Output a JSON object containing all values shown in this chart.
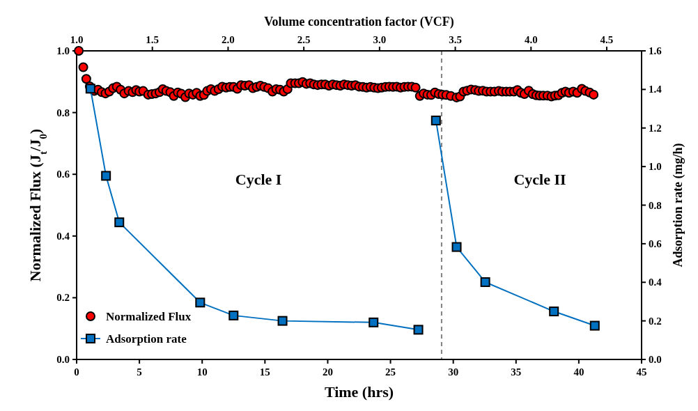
{
  "chart_data": {
    "type": "scatter",
    "xlabel": "Time (hrs)",
    "x2label": "Volume concentration factor (VCF)",
    "ylabel": "Normalized Flux (J$_{t}$/J$_{0}$)",
    "y2label": "Adsorption rate (mg/h)",
    "xlim": [
      0,
      45
    ],
    "xticks": [
      0,
      5,
      10,
      15,
      20,
      25,
      30,
      35,
      40,
      45
    ],
    "x2lim": [
      1.0,
      4.73
    ],
    "x2ticks": [
      {
        "value": 1.0,
        "label": "1.0"
      },
      {
        "value": 1.5,
        "label": "1.5"
      },
      {
        "value": 2.0,
        "label": "2.0"
      },
      {
        "value": 2.5,
        "label": "2.5"
      },
      {
        "value": 3.0,
        "label": "3.0"
      },
      {
        "value": 3.5,
        "label": "3.5"
      },
      {
        "value": 4.0,
        "label": "4.0"
      },
      {
        "value": 4.5,
        "label": "4.5"
      }
    ],
    "ylim": [
      0,
      1
    ],
    "yticks": [
      {
        "value": 0,
        "label": "0.0"
      },
      {
        "value": 0.2,
        "label": "0.2"
      },
      {
        "value": 0.4,
        "label": "0.4"
      },
      {
        "value": 0.6,
        "label": "0.6"
      },
      {
        "value": 0.8,
        "label": "0.8"
      },
      {
        "value": 1.0,
        "label": "1.0"
      }
    ],
    "y2lim": [
      0,
      1.6
    ],
    "y2ticks": [
      {
        "value": 0,
        "label": "0.0"
      },
      {
        "value": 0.2,
        "label": "0.2"
      },
      {
        "value": 0.4,
        "label": "0.4"
      },
      {
        "value": 0.6,
        "label": "0.6"
      },
      {
        "value": 0.8,
        "label": "0.8"
      },
      {
        "value": 1.0,
        "label": "1.0"
      },
      {
        "value": 1.2,
        "label": "1.2"
      },
      {
        "value": 1.4,
        "label": "1.4"
      },
      {
        "value": 1.6,
        "label": "1.6"
      }
    ],
    "legend": "bottom left",
    "grid": false,
    "ref_lines": [
      {
        "axis": "x",
        "value": 29.07,
        "color": "#808080",
        "line_style": "dashed"
      }
    ],
    "annotations": [
      "Cycle I",
      "Cycle II"
    ],
    "series": [
      {
        "name": "Normalized Flux",
        "marker": "circle",
        "color": "#ff0000",
        "x": [
          0.17,
          0.53,
          0.77,
          1.05,
          1.4,
          1.7,
          2.0,
          2.3,
          2.6,
          2.9,
          3.2,
          3.5,
          3.8,
          4.14,
          4.46,
          4.74,
          5.0,
          5.3,
          5.7,
          6.0,
          6.3,
          6.6,
          6.86,
          7.14,
          7.46,
          7.74,
          8.06,
          8.34,
          8.66,
          8.96,
          9.26,
          9.56,
          9.84,
          10.14,
          10.4,
          10.7,
          11.0,
          11.3,
          11.6,
          11.9,
          12.2,
          12.5,
          12.8,
          13.1,
          13.4,
          13.74,
          14.04,
          14.34,
          14.64,
          14.94,
          15.26,
          15.6,
          15.9,
          16.2,
          16.5,
          16.8,
          17.06,
          17.4,
          17.7,
          18.0,
          18.3,
          18.6,
          18.9,
          19.2,
          19.5,
          19.8,
          20.1,
          20.4,
          20.7,
          21.0,
          21.3,
          21.6,
          21.9,
          22.2,
          22.5,
          22.8,
          23.1,
          23.4,
          23.7,
          24.0,
          24.3,
          24.6,
          24.9,
          25.2,
          25.5,
          25.8,
          26.1,
          26.4,
          26.7,
          27.0,
          27.34,
          27.64,
          27.94,
          28.24,
          28.54,
          28.84,
          29.14,
          29.44,
          29.8,
          30.26,
          30.54,
          30.82,
          31.1,
          31.42,
          31.75,
          32.03,
          32.35,
          32.65,
          32.97,
          33.28,
          33.62,
          33.9,
          34.22,
          34.51,
          34.83,
          35.11,
          35.39,
          35.67,
          36.01,
          36.33,
          36.61,
          36.89,
          37.17,
          37.5,
          37.82,
          38.1,
          38.38,
          38.66,
          38.94,
          39.22,
          39.55,
          39.87,
          40.24,
          40.52,
          40.86,
          41.18
        ],
        "values": [
          1.0,
          0.947,
          0.909,
          0.885,
          0.87,
          0.874,
          0.866,
          0.862,
          0.868,
          0.879,
          0.884,
          0.874,
          0.862,
          0.87,
          0.866,
          0.873,
          0.868,
          0.87,
          0.858,
          0.86,
          0.862,
          0.866,
          0.876,
          0.87,
          0.866,
          0.854,
          0.865,
          0.861,
          0.85,
          0.862,
          0.858,
          0.864,
          0.854,
          0.857,
          0.87,
          0.876,
          0.87,
          0.876,
          0.884,
          0.881,
          0.883,
          0.883,
          0.877,
          0.889,
          0.887,
          0.889,
          0.879,
          0.883,
          0.887,
          0.883,
          0.879,
          0.868,
          0.876,
          0.874,
          0.868,
          0.876,
          0.895,
          0.895,
          0.895,
          0.899,
          0.893,
          0.895,
          0.891,
          0.889,
          0.891,
          0.891,
          0.887,
          0.891,
          0.889,
          0.887,
          0.891,
          0.889,
          0.887,
          0.889,
          0.884,
          0.883,
          0.881,
          0.883,
          0.881,
          0.879,
          0.881,
          0.883,
          0.884,
          0.883,
          0.884,
          0.881,
          0.883,
          0.884,
          0.884,
          0.881,
          0.854,
          0.862,
          0.858,
          0.857,
          0.865,
          0.86,
          0.858,
          0.857,
          0.854,
          0.849,
          0.852,
          0.868,
          0.871,
          0.875,
          0.873,
          0.87,
          0.871,
          0.868,
          0.868,
          0.868,
          0.87,
          0.868,
          0.868,
          0.868,
          0.868,
          0.873,
          0.864,
          0.86,
          0.871,
          0.86,
          0.856,
          0.855,
          0.855,
          0.855,
          0.852,
          0.855,
          0.856,
          0.864,
          0.868,
          0.864,
          0.868,
          0.864,
          0.877,
          0.87,
          0.865,
          0.858
        ]
      },
      {
        "name": "Adsorption rate",
        "type": "line",
        "marker": "square",
        "color": "#0070c0",
        "axis": "y2",
        "x": [
          1.1,
          2.34,
          3.4,
          9.84,
          12.5,
          16.4,
          23.65,
          27.22,
          null,
          28.62,
          30.27,
          32.55,
          38.02,
          41.27
        ],
        "values": [
          1.404,
          0.952,
          0.711,
          0.295,
          0.228,
          0.2,
          0.192,
          0.154,
          null,
          1.239,
          0.583,
          0.401,
          0.249,
          0.175
        ]
      }
    ]
  }
}
